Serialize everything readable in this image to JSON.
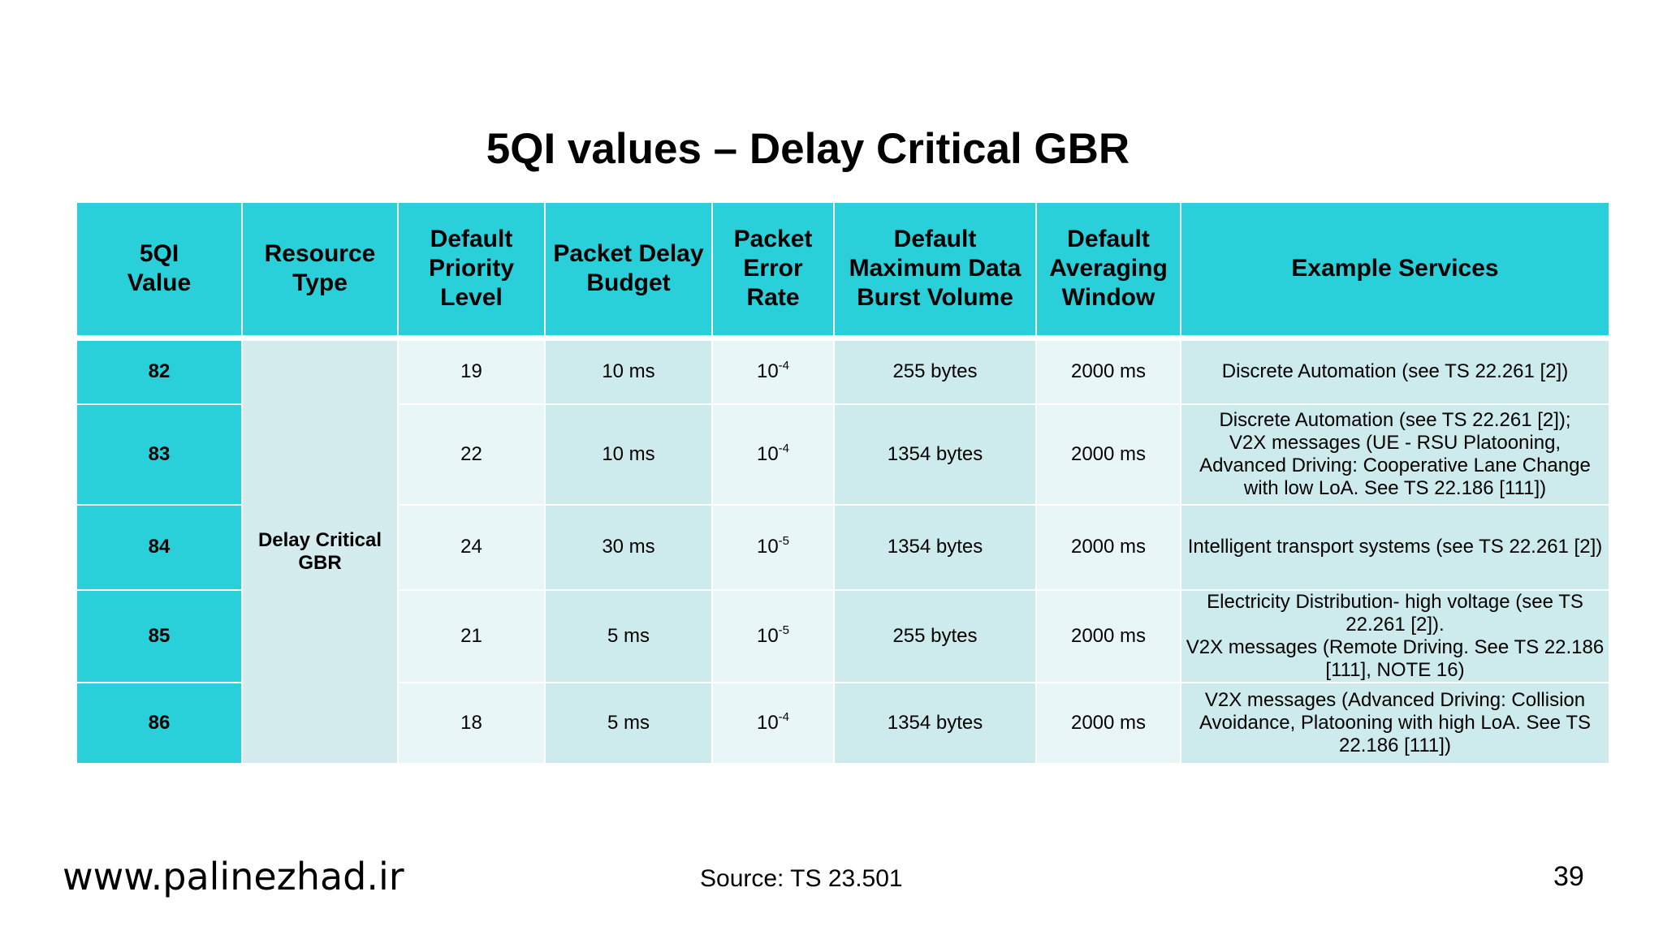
{
  "slide": {
    "title": "5QI values – Delay Critical GBR",
    "footer_url": "www.palinezhad.ir",
    "source": "Source: TS 23.501",
    "page_number": "39"
  },
  "table": {
    "headers": [
      "5QI Value",
      "Resource Type",
      "Default Priority Level",
      "Packet Delay Budget",
      "Packet Error Rate",
      "Default Maximum Data Burst Volume",
      "Default Averaging Window",
      "Example Services"
    ],
    "resource_type": "Delay Critical GBR",
    "rows": [
      {
        "qi": "82",
        "priority": "19",
        "delay": "10 ms",
        "per_base": "10",
        "per_exp": "-4",
        "burst": "255 bytes",
        "window": "2000 ms",
        "services": "Discrete Automation (see TS 22.261 [2])"
      },
      {
        "qi": "83",
        "priority": "22",
        "delay": "10 ms",
        "per_base": "10",
        "per_exp": "-4",
        "burst": "1354 bytes",
        "window": "2000 ms",
        "services": "Discrete Automation (see TS 22.261 [2]);\nV2X messages (UE - RSU Platooning, Advanced Driving: Cooperative Lane Change with low LoA. See TS 22.186 [111])"
      },
      {
        "qi": "84",
        "priority": "24",
        "delay": "30 ms",
        "per_base": "10",
        "per_exp": "-5",
        "burst": "1354 bytes",
        "window": "2000 ms",
        "services": "Intelligent transport systems (see TS 22.261 [2])"
      },
      {
        "qi": "85",
        "priority": "21",
        "delay": "5 ms",
        "per_base": "10",
        "per_exp": "-5",
        "burst": "255 bytes",
        "window": "2000 ms",
        "services": "Electricity Distribution- high voltage (see TS 22.261 [2]).\nV2X messages (Remote Driving. See TS 22.186 [111], NOTE 16)"
      },
      {
        "qi": "86",
        "priority": "18",
        "delay": "5 ms",
        "per_base": "10",
        "per_exp": "-4",
        "burst": "1354 bytes",
        "window": "2000 ms",
        "services": "V2X messages (Advanced Driving: Collision Avoidance, Platooning with high LoA. See TS 22.186 [111])"
      }
    ]
  },
  "colors": {
    "header_bg": "#29cfd9",
    "qi_col_bg": "#29cfd9",
    "cell_light": "#e8f6f7",
    "cell_mid": "#cdebed",
    "resource_bg": "#d4ecee"
  }
}
